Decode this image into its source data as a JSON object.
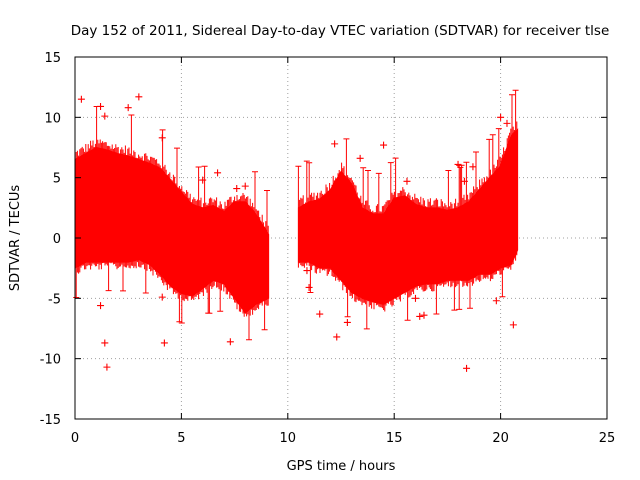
{
  "chart_data": {
    "type": "scatter",
    "title": "Day 152 of 2011, Sidereal Day-to-day VTEC variation (SDTVAR) for receiver tlse",
    "xlabel": "GPS time / hours",
    "ylabel": "SDTVAR / TECUs",
    "xlim": [
      0,
      25
    ],
    "ylim": [
      -15,
      15
    ],
    "xticks": [
      "0",
      "5",
      "10",
      "15",
      "20",
      "25"
    ],
    "yticks": [
      "-15",
      "-10",
      "-5",
      "0",
      "5",
      "10",
      "15"
    ],
    "grid": true,
    "marker": "+",
    "series_color": "#ff0000",
    "segments": [
      {
        "name": "segment-1",
        "x_start": 0.0,
        "x_end": 9.1,
        "time_hours": [
          0.0,
          0.5,
          1.0,
          1.5,
          2.0,
          2.5,
          3.0,
          3.5,
          4.0,
          4.5,
          5.0,
          5.5,
          6.0,
          6.5,
          7.0,
          7.5,
          8.0,
          8.5,
          9.1
        ],
        "upper_tecu": [
          6.5,
          7.0,
          7.5,
          7.3,
          7.0,
          6.8,
          6.5,
          6.2,
          5.8,
          4.8,
          3.8,
          2.8,
          2.5,
          2.7,
          2.2,
          3.0,
          3.0,
          2.0,
          0.3
        ],
        "lower_tecu": [
          -2.5,
          -2.0,
          -2.0,
          -2.0,
          -2.0,
          -2.0,
          -1.8,
          -2.2,
          -3.0,
          -4.0,
          -4.6,
          -4.8,
          -4.2,
          -3.5,
          -3.8,
          -5.0,
          -6.2,
          -5.5,
          -5.0
        ]
      },
      {
        "name": "segment-2",
        "x_start": 10.5,
        "x_end": 20.8,
        "time_hours": [
          10.5,
          11.0,
          11.5,
          12.0,
          12.5,
          13.0,
          13.5,
          14.0,
          14.5,
          15.0,
          15.5,
          16.0,
          16.5,
          17.0,
          17.5,
          18.0,
          18.5,
          19.0,
          19.5,
          20.0,
          20.5,
          20.8
        ],
        "upper_tecu": [
          2.5,
          3.0,
          3.2,
          4.0,
          5.5,
          4.5,
          2.5,
          2.0,
          2.0,
          3.3,
          3.5,
          2.8,
          2.5,
          2.5,
          2.3,
          2.5,
          3.0,
          4.0,
          5.0,
          6.0,
          8.5,
          9.0
        ],
        "lower_tecu": [
          -2.0,
          -2.0,
          -2.5,
          -2.5,
          -3.5,
          -4.5,
          -5.0,
          -5.3,
          -5.5,
          -5.0,
          -4.5,
          -4.0,
          -3.8,
          -3.8,
          -3.5,
          -3.5,
          -3.5,
          -3.0,
          -3.0,
          -2.5,
          -2.2,
          -1.0
        ]
      }
    ],
    "outliers": [
      [
        0.3,
        11.5
      ],
      [
        1.2,
        10.9
      ],
      [
        1.4,
        10.1
      ],
      [
        1.2,
        -5.6
      ],
      [
        1.4,
        -8.7
      ],
      [
        1.5,
        -10.7
      ],
      [
        2.5,
        10.8
      ],
      [
        3.0,
        11.7
      ],
      [
        4.1,
        8.3
      ],
      [
        4.1,
        -4.9
      ],
      [
        4.2,
        -8.7
      ],
      [
        6.7,
        5.4
      ],
      [
        6.0,
        4.8
      ],
      [
        7.3,
        -8.6
      ],
      [
        7.6,
        4.1
      ],
      [
        8.0,
        4.3
      ],
      [
        10.9,
        -2.7
      ],
      [
        11.0,
        -4.1
      ],
      [
        11.5,
        -6.3
      ],
      [
        12.2,
        7.8
      ],
      [
        12.3,
        -8.2
      ],
      [
        12.8,
        -7.0
      ],
      [
        13.4,
        6.6
      ],
      [
        14.5,
        7.7
      ],
      [
        15.6,
        4.7
      ],
      [
        16.0,
        -5.0
      ],
      [
        16.2,
        -6.5
      ],
      [
        16.4,
        -6.4
      ],
      [
        18.0,
        6.1
      ],
      [
        18.3,
        4.7
      ],
      [
        18.4,
        -10.8
      ],
      [
        18.7,
        5.9
      ],
      [
        19.8,
        -5.2
      ],
      [
        20.0,
        10.0
      ],
      [
        20.3,
        9.5
      ],
      [
        20.6,
        -7.2
      ]
    ]
  }
}
